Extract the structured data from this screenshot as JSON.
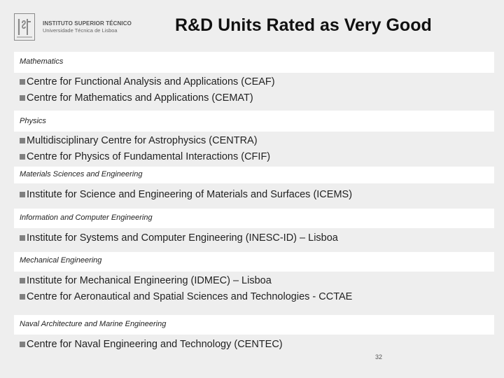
{
  "header": {
    "institution": "INSTITUTO SUPERIOR TÉCNICO",
    "institution_sub": "Universidade Técnica de Lisboa",
    "title": "R&D Units Rated as Very Good"
  },
  "sections": [
    {
      "label": "Mathematics",
      "items": [
        "Centre for Functional Analysis and Applications (CEAF)",
        "Centre for Mathematics and Applications (CEMAT)"
      ]
    },
    {
      "label": "Physics",
      "items": [
        "Multidisciplinary Centre for Astrophysics (CENTRA)",
        "Centre for Physics of Fundamental Interactions (CFIF)"
      ]
    },
    {
      "label": "Materials Sciences and Engineering",
      "items": [
        "Institute for Science and Engineering of Materials and Surfaces (ICEMS)"
      ]
    },
    {
      "label": "Information and Computer Engineering",
      "items": [
        "Institute for Systems and Computer Engineering (INESC-ID) – Lisboa"
      ]
    },
    {
      "label": "Mechanical Engineering",
      "items": [
        "Institute for Mechanical Engineering (IDMEC) – Lisboa",
        "Centre for Aeronautical and Spatial Sciences and Technologies - CCTAE"
      ]
    },
    {
      "label": "Naval Architecture and Marine Engineering",
      "items": [
        "Centre for Naval Engineering and Technology (CENTEC)"
      ]
    }
  ],
  "footer": {
    "page_number": "32"
  },
  "colors": {
    "background": "#eeeeee",
    "band": "#ffffff",
    "bullet": "#808080"
  },
  "icons": {
    "logo": "ist-logo-icon",
    "bullet": "square-bullet-icon"
  }
}
